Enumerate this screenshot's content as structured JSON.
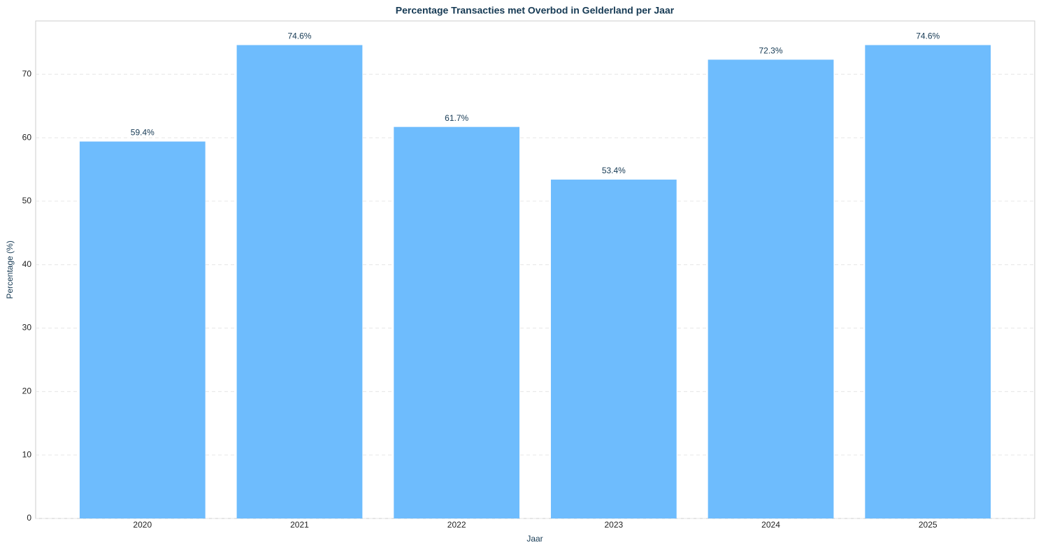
{
  "chart_data": {
    "type": "bar",
    "title": "Percentage Transacties met Overbod in Gelderland per Jaar",
    "x_label": "Jaar",
    "y_label": "Percentage (%)",
    "categories": [
      "2020",
      "2021",
      "2022",
      "2023",
      "2024",
      "2025"
    ],
    "values": [
      59.4,
      74.6,
      61.7,
      53.4,
      72.3,
      74.6
    ],
    "value_labels": [
      "59.4%",
      "74.6%",
      "61.7%",
      "53.4%",
      "72.3%",
      "74.6%"
    ],
    "color": "#6ebcfd",
    "ylim": [
      0,
      78.4
    ],
    "yticks": [
      0,
      10,
      20,
      30,
      40,
      50,
      60,
      70
    ],
    "grid": true
  }
}
